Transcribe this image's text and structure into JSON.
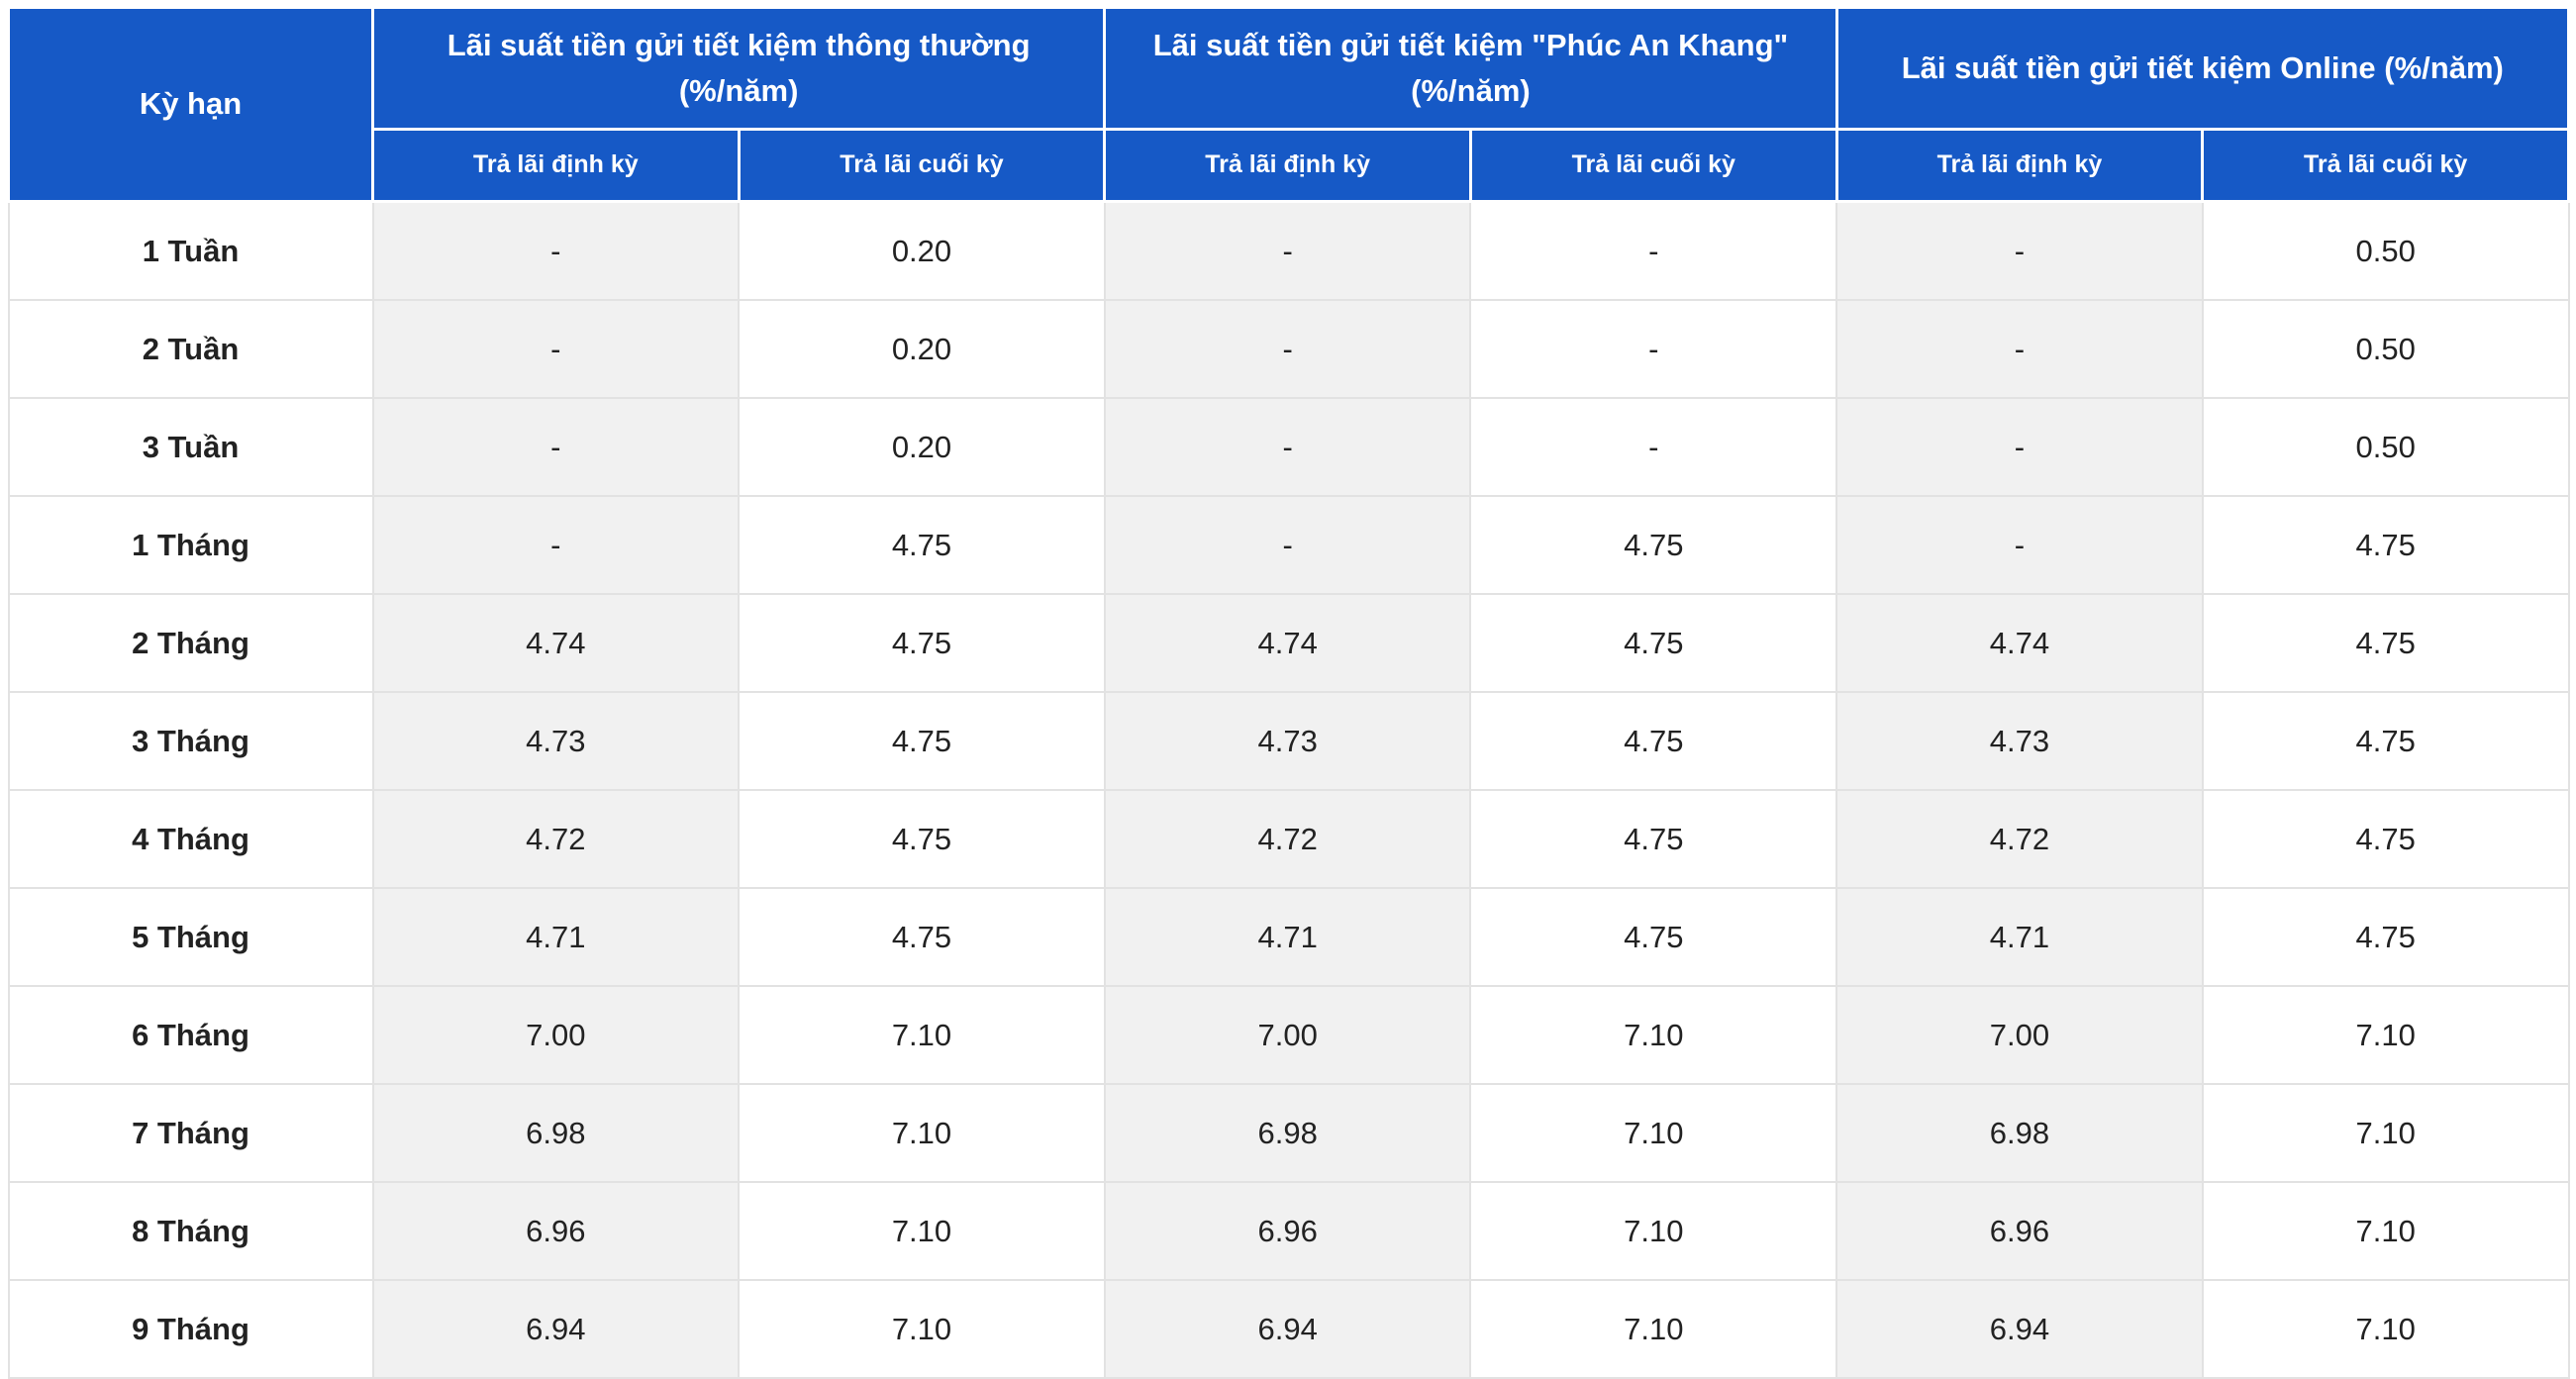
{
  "header": {
    "term": "Kỳ hạn",
    "groups": [
      "Lãi suất tiền gửi tiết kiệm thông thường (%/năm)",
      "Lãi suất tiền gửi tiết kiệm \"Phúc An Khang\" (%/năm)",
      "Lãi suất tiền gửi tiết kiệm Online (%/năm)"
    ],
    "subheaders": [
      "Trả lãi định kỳ",
      "Trả lãi cuối kỳ",
      "Trả lãi định kỳ",
      "Trả lãi cuối kỳ",
      "Trả lãi định kỳ",
      "Trả lãi cuối kỳ"
    ]
  },
  "table": {
    "rows": [
      [
        "1 Tuần",
        "-",
        "0.20",
        "-",
        "-",
        "-",
        "0.50"
      ],
      [
        "2 Tuần",
        "-",
        "0.20",
        "-",
        "-",
        "-",
        "0.50"
      ],
      [
        "3 Tuần",
        "-",
        "0.20",
        "-",
        "-",
        "-",
        "0.50"
      ],
      [
        "1 Tháng",
        "-",
        "4.75",
        "-",
        "4.75",
        "-",
        "4.75"
      ],
      [
        "2 Tháng",
        "4.74",
        "4.75",
        "4.74",
        "4.75",
        "4.74",
        "4.75"
      ],
      [
        "3 Tháng",
        "4.73",
        "4.75",
        "4.73",
        "4.75",
        "4.73",
        "4.75"
      ],
      [
        "4 Tháng",
        "4.72",
        "4.75",
        "4.72",
        "4.75",
        "4.72",
        "4.75"
      ],
      [
        "5 Tháng",
        "4.71",
        "4.75",
        "4.71",
        "4.75",
        "4.71",
        "4.75"
      ],
      [
        "6 Tháng",
        "7.00",
        "7.10",
        "7.00",
        "7.10",
        "7.00",
        "7.10"
      ],
      [
        "7 Tháng",
        "6.98",
        "7.10",
        "6.98",
        "7.10",
        "6.98",
        "7.10"
      ],
      [
        "8 Tháng",
        "6.96",
        "7.10",
        "6.96",
        "7.10",
        "6.96",
        "7.10"
      ],
      [
        "9 Tháng",
        "6.94",
        "7.10",
        "6.94",
        "7.10",
        "6.94",
        "7.10"
      ]
    ]
  }
}
